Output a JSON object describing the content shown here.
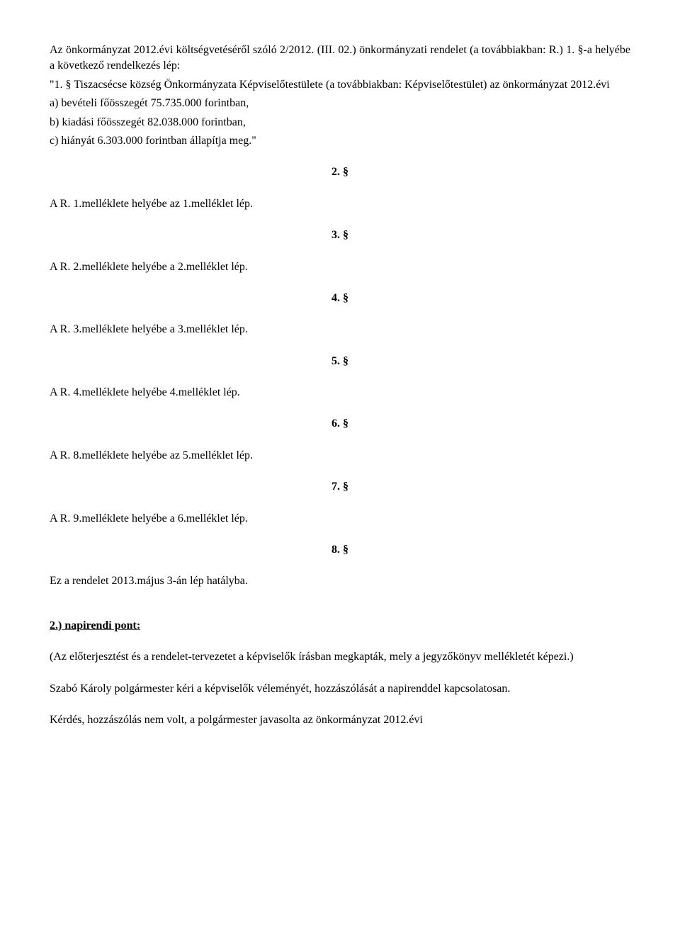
{
  "intro": "Az önkormányzat 2012.évi költségvetéséről szóló 2/2012. (III. 02.) önkormányzati rendelet (a továbbiakban: R.) 1. §-a helyébe a következő rendelkezés lép:",
  "quote": {
    "line1": "\"1. § Tiszacsécse község Önkormányzata Képviselőtestülete (a továbbiakban: Képviselőtestület) az önkormányzat 2012.évi",
    "a": "a) bevételi főösszegét  75.735.000 forintban,",
    "b": "b) kiadási főösszegét  82.038.000 forintban,",
    "c": "c) hiányát 6.303.000  forintban állapítja meg.\""
  },
  "sections": [
    {
      "num": "2. §",
      "text": "A R. 1.melléklete helyébe az 1.melléklet lép."
    },
    {
      "num": "3. §",
      "text": "A R. 2.melléklete helyébe a 2.melléklet lép."
    },
    {
      "num": "4. §",
      "text": "A R. 3.melléklete helyébe a 3.melléklet lép."
    },
    {
      "num": "5. §",
      "text": "A R. 4.melléklete helyébe 4.melléklet lép."
    },
    {
      "num": "6. §",
      "text": "A R. 8.melléklete helyébe az 5.melléklet lép."
    },
    {
      "num": "7. §",
      "text": "A R. 9.melléklete helyébe a 6.melléklet lép."
    },
    {
      "num": "8. §",
      "text": "Ez a rendelet 2013.május 3-án lép hatályba."
    }
  ],
  "agenda": {
    "heading": "2.) napirendi pont:",
    "p1": "(Az előterjesztést és a rendelet-tervezetet a képviselők írásban megkapták, mely a jegyzőkönyv mellékletét képezi.)",
    "p2": "Szabó Károly polgármester kéri a képviselők véleményét, hozzászólását a napirenddel kapcsolatosan.",
    "p3": "Kérdés, hozzászólás nem volt, a polgármester javasolta az önkormányzat 2012.évi"
  }
}
